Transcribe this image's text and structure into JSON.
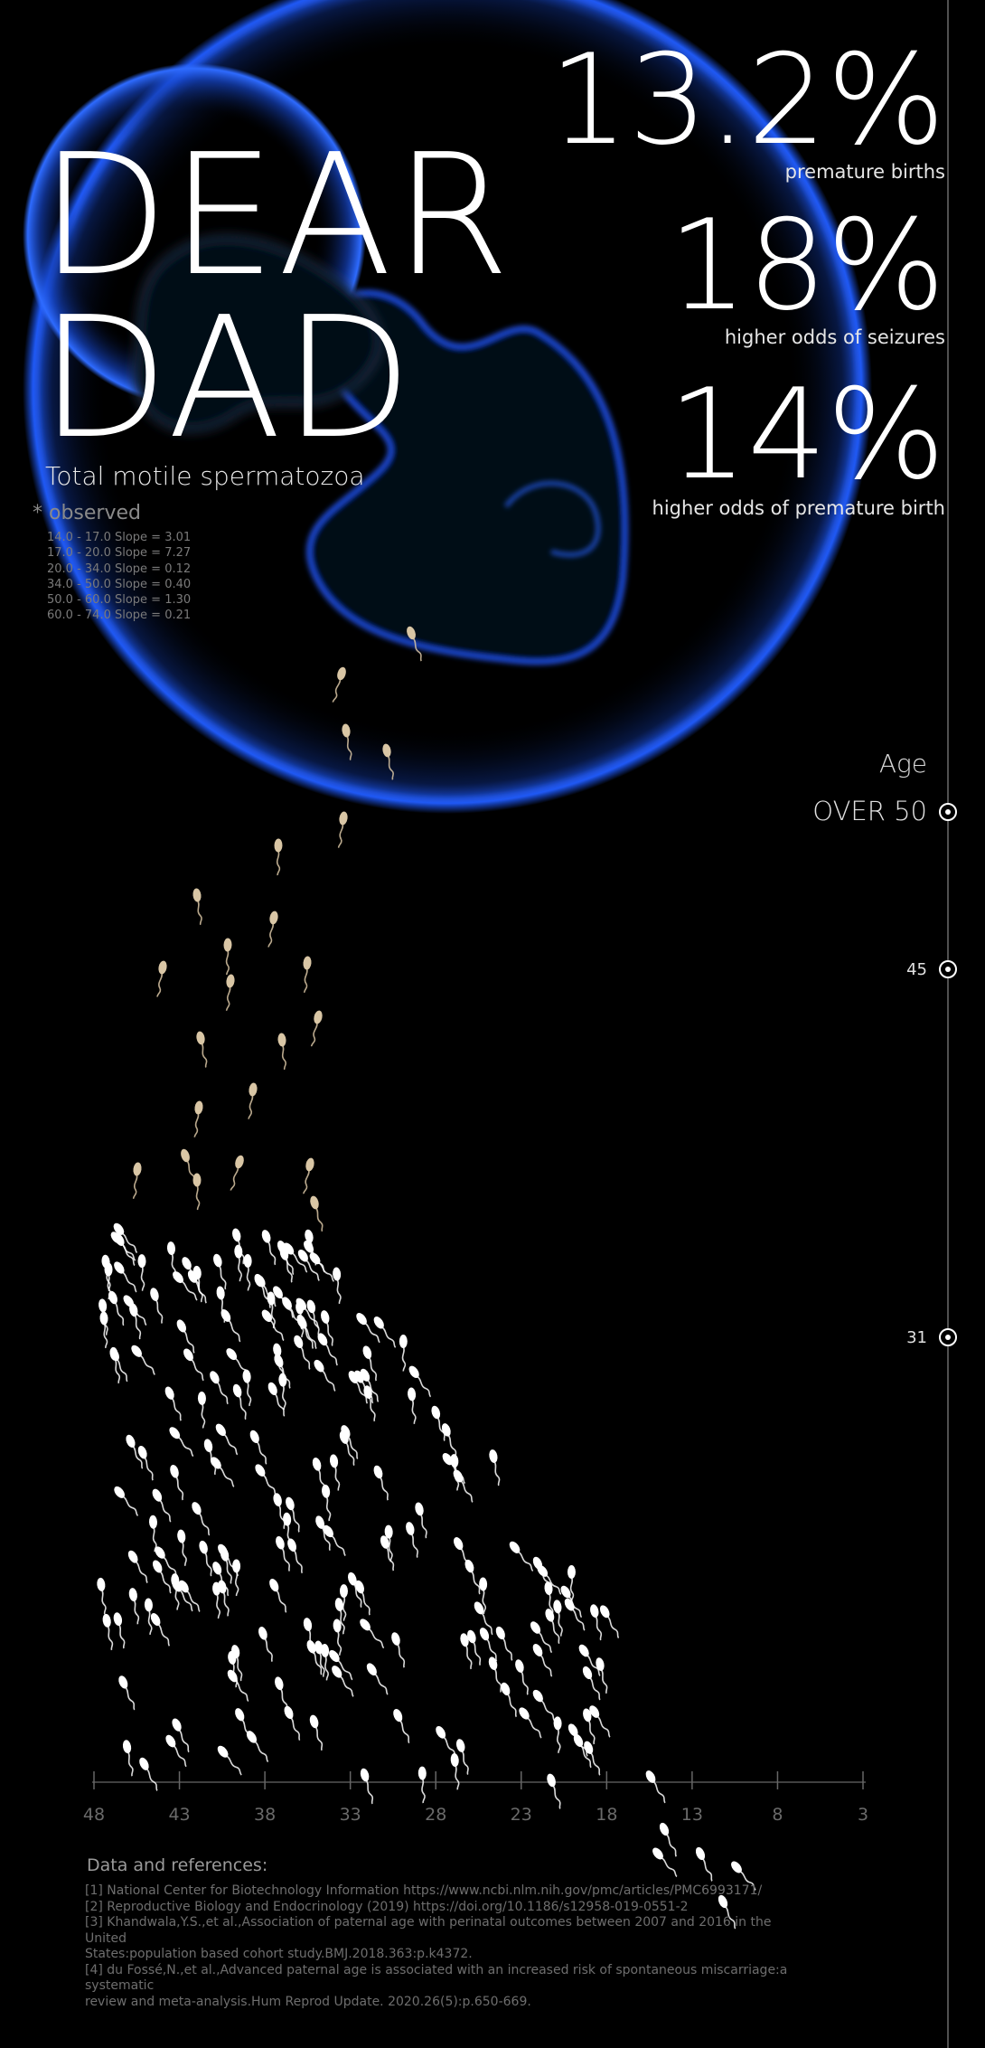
{
  "title_lines": [
    "DEAR",
    "DAD"
  ],
  "subtitle": "Total motile spermatozoa",
  "observed_label": "* observed",
  "slopes": [
    "14.0 - 17.0 Slope = 3.01",
    "17.0 - 20.0 Slope = 7.27",
    "20.0 - 34.0 Slope = 0.12",
    "34.0 - 50.0 Slope = 0.40",
    "50.0 - 60.0 Slope = 1.30",
    "60.0 - 74.0 Slope = 0.21"
  ],
  "stats": [
    {
      "value": "13.2%",
      "label": "premature births"
    },
    {
      "value": "18%",
      "label": "higher odds of seizures"
    },
    {
      "value": "14%",
      "label": "higher odds of premature birth"
    }
  ],
  "age_axis": {
    "title": "Age",
    "markers": [
      {
        "label": "OVER 50"
      },
      {
        "label": "45"
      },
      {
        "label": "31"
      }
    ]
  },
  "references": {
    "heading": "Data and references:",
    "lines": [
      "[1] National Center for Biotechnology Information  https://www.ncbi.nlm.nih.gov/pmc/articles/PMC6993171/",
      "[2] Reproductive Biology and Endocrinology (2019) https://doi.org/10.1186/s12958-019-0551-2",
      "[3] Khandwala,Y.S.,et al.,Association of paternal age with perinatal outcomes between 2007 and 2016 in the United",
      "States:population based cohort study.BMJ.2018.363:p.k4372.",
      "[4] du Fossé,N.,et al.,Advanced paternal age is associated with an increased risk of spontaneous miscarriage:a systematic",
      "review and meta-analysis.Hum Reprod Update. 2020.26(5):p.650-669."
    ]
  },
  "colors": {
    "background": "#000000",
    "glow": "#1f5bff",
    "sperm_white": "#ffffff",
    "sperm_beige": "#d9c6a5",
    "axis": "#555555"
  },
  "chart_data": {
    "type": "scatter",
    "x_ticks": [
      48,
      43,
      38,
      33,
      28,
      23,
      18,
      13,
      8,
      3
    ],
    "xlim": [
      48,
      3
    ]
  }
}
